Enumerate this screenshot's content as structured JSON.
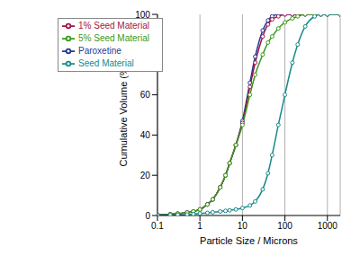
{
  "chart_data": {
    "type": "line",
    "x_label": "Particle Size / Microns",
    "y_label": "Cumulative Volume (%)",
    "log": "x",
    "grid": "x",
    "legend": "top-left",
    "marker": "circle",
    "xlim": [
      0.1,
      2000
    ],
    "xticks": [
      0.1,
      1,
      10,
      100,
      1000
    ],
    "ylim": [
      0,
      100
    ],
    "yticks": [
      0,
      20,
      40,
      60,
      80,
      100
    ],
    "x": [
      0.1,
      0.2,
      0.3,
      0.5,
      0.7,
      1,
      1.5,
      2,
      3,
      4,
      5,
      7,
      10,
      15,
      20,
      30,
      40,
      50,
      70,
      100,
      150,
      200,
      300,
      500,
      700,
      1000,
      2000
    ],
    "series": [
      {
        "name": "Paroxetine",
        "color": "#1f3a93",
        "values": [
          0.3,
          0.6,
          0.9,
          1.5,
          2,
          3,
          5.5,
          8,
          14,
          20,
          26,
          35,
          47,
          66,
          79,
          92,
          97,
          99,
          100,
          100,
          100,
          100,
          100,
          100,
          100,
          100,
          100
        ]
      },
      {
        "name": "1% Seed Material",
        "color": "#a0144a",
        "values": [
          0.3,
          0.6,
          0.9,
          1.5,
          2,
          3,
          5.5,
          8,
          14,
          20,
          26,
          35,
          46,
          64,
          76,
          89,
          95,
          97.5,
          99,
          100,
          100,
          100,
          100,
          100,
          100,
          100,
          100
        ]
      },
      {
        "name": "5% Seed Material",
        "color": "#3a9a1a",
        "values": [
          0.3,
          0.6,
          0.9,
          1.5,
          2,
          3,
          5.5,
          8,
          14,
          20,
          26,
          35,
          45,
          60,
          70,
          80,
          86,
          89,
          93,
          96,
          98,
          99,
          100,
          100,
          100,
          100,
          100
        ]
      },
      {
        "name": "Seed Material",
        "color": "#178a8a",
        "values": [
          0.1,
          0.2,
          0.3,
          0.5,
          0.7,
          1,
          1.3,
          1.6,
          2,
          2.3,
          2.6,
          3,
          3.7,
          5,
          7,
          13,
          21,
          30,
          45,
          60,
          76,
          85,
          94,
          99,
          100,
          100,
          100
        ]
      }
    ]
  }
}
